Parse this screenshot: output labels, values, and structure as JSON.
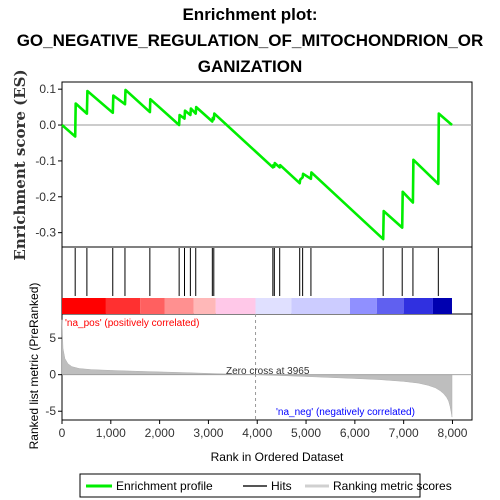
{
  "title_lines": [
    "Enrichment plot:",
    "GO_NEGATIVE_REGULATION_OF_MITOCHONDRION_OR",
    "GANIZATION"
  ],
  "chart_data": {
    "type": "line",
    "title": "Enrichment plot: GO_NEGATIVE_REGULATION_OF_MITOCHONDRION_ORGANIZATION",
    "xlabel": "Rank in Ordered Dataset",
    "ylabel_es": "Enrichment score (ES)",
    "ylabel_metric": "Ranked list metric (PreRanked)",
    "xlim": [
      0,
      8400
    ],
    "es_ylim": [
      -0.34,
      0.12
    ],
    "metric_ylim": [
      -6.2,
      8.3
    ],
    "x_ticks": [
      0,
      1000,
      2000,
      3000,
      4000,
      5000,
      6000,
      7000,
      8000
    ],
    "x_tick_labels": [
      "0",
      "1,000",
      "2,000",
      "3,000",
      "4,000",
      "5,000",
      "6,000",
      "7,000",
      "8,000"
    ],
    "es_ticks": [
      0.1,
      0.0,
      -0.1,
      -0.2,
      -0.3
    ],
    "es_tick_labels": [
      "0.1",
      "0.0",
      "-0.1",
      "-0.2",
      "-0.3"
    ],
    "metric_ticks": [
      5,
      0,
      -5
    ],
    "metric_tick_labels": [
      "5",
      "0",
      "-5"
    ],
    "enrichment_profile": {
      "x": [
        0,
        270,
        280,
        510,
        520,
        1040,
        1050,
        1290,
        1300,
        1800,
        1810,
        2400,
        2410,
        2510,
        2520,
        2630,
        2640,
        2740,
        2750,
        3080,
        3090,
        3110,
        3120,
        4320,
        4330,
        4350,
        4360,
        4460,
        4470,
        4870,
        4880,
        4930,
        4940,
        5100,
        5110,
        6580,
        6590,
        6970,
        6980,
        7190,
        7200,
        7710,
        7720,
        7990
      ],
      "y": [
        0.0,
        -0.032,
        0.06,
        0.032,
        0.095,
        0.034,
        0.082,
        0.058,
        0.098,
        0.036,
        0.072,
        0.0,
        0.028,
        0.018,
        0.04,
        0.028,
        0.046,
        0.032,
        0.05,
        0.01,
        0.02,
        0.016,
        0.032,
        -0.118,
        -0.112,
        -0.116,
        -0.106,
        -0.118,
        -0.112,
        -0.162,
        -0.152,
        -0.146,
        -0.136,
        -0.15,
        -0.132,
        -0.318,
        -0.24,
        -0.286,
        -0.186,
        -0.216,
        -0.097,
        -0.164,
        0.032,
        0.0
      ]
    },
    "hits": [
      270,
      510,
      1040,
      1290,
      1800,
      2400,
      2510,
      2630,
      2740,
      3080,
      3110,
      4320,
      4350,
      4460,
      4870,
      4930,
      5100,
      6580,
      6970,
      7190,
      7710
    ],
    "metric_profile": {
      "x": [
        0,
        20,
        60,
        120,
        200,
        350,
        600,
        1000,
        1500,
        2000,
        2500,
        3000,
        3500,
        3965,
        4500,
        5000,
        5500,
        6000,
        6500,
        7000,
        7300,
        7500,
        7650,
        7750,
        7820,
        7880,
        7920,
        7950,
        7970,
        7990
      ],
      "y": [
        7.5,
        3.6,
        2.2,
        1.5,
        1.1,
        0.85,
        0.7,
        0.58,
        0.47,
        0.38,
        0.28,
        0.18,
        0.08,
        0.0,
        -0.12,
        -0.25,
        -0.38,
        -0.52,
        -0.68,
        -0.92,
        -1.15,
        -1.45,
        -1.8,
        -2.2,
        -2.6,
        -3.1,
        -3.6,
        -4.3,
        -5.0,
        -5.8
      ]
    },
    "zero_cross_label": "Zero cross at 3965",
    "zero_cross_x": 3965,
    "pos_label": "'na_pos' (positively correlated)",
    "neg_label": "'na_neg' (negatively correlated)",
    "legend": {
      "placement": "bottom",
      "items": [
        "Enrichment profile",
        "Hits",
        "Ranking metric scores"
      ]
    },
    "colors": {
      "profile": "#00ee00",
      "hits": "#000000",
      "metric": "#bebebe",
      "pos_text": "#ff0000",
      "neg_text": "#0000ff"
    },
    "color_bar": [
      {
        "from": 0,
        "to": 900,
        "color": "#ff0000"
      },
      {
        "from": 900,
        "to": 1600,
        "color": "#ff3030"
      },
      {
        "from": 1600,
        "to": 2100,
        "color": "#ff6060"
      },
      {
        "from": 2100,
        "to": 2700,
        "color": "#ff9090"
      },
      {
        "from": 2700,
        "to": 3150,
        "color": "#ffb8b8"
      },
      {
        "from": 3150,
        "to": 3965,
        "color": "#ffc8e8"
      },
      {
        "from": 3965,
        "to": 4700,
        "color": "#e0e0ff"
      },
      {
        "from": 4700,
        "to": 5900,
        "color": "#ccccff"
      },
      {
        "from": 5900,
        "to": 6450,
        "color": "#9090ff"
      },
      {
        "from": 6450,
        "to": 7000,
        "color": "#6060f0"
      },
      {
        "from": 7000,
        "to": 7600,
        "color": "#3030e0"
      },
      {
        "from": 7600,
        "to": 7990,
        "color": "#0000b0"
      }
    ]
  }
}
